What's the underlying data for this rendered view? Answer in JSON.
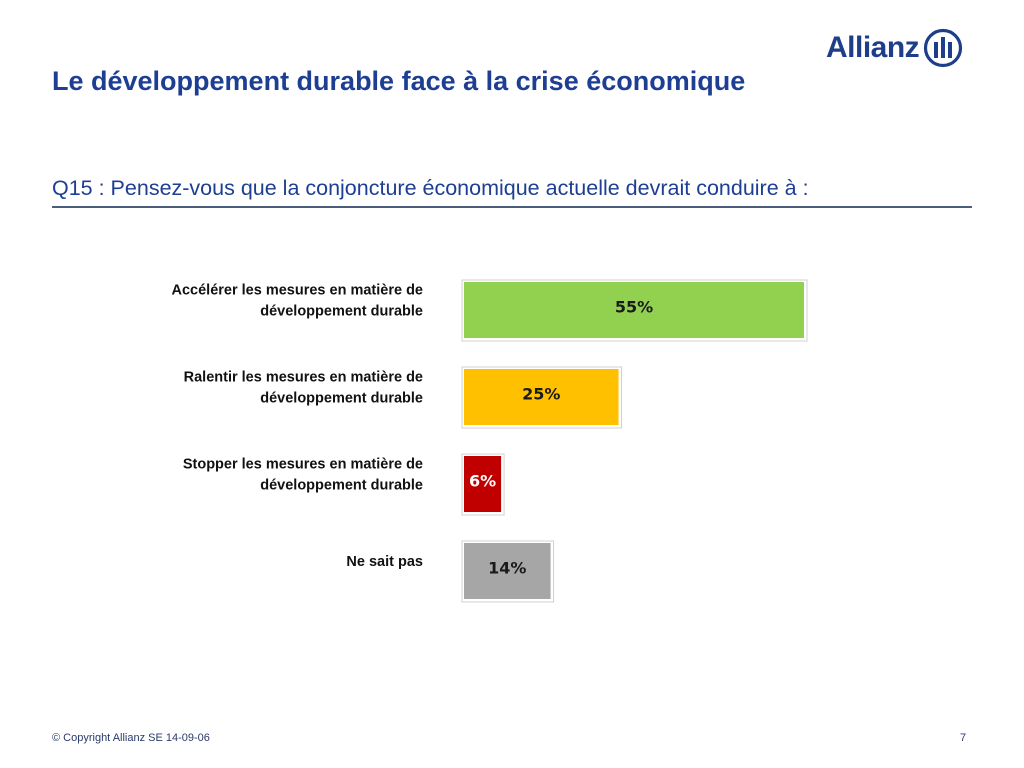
{
  "brand": {
    "name": "Allianz"
  },
  "title": "Le développement durable face à la crise économique",
  "question": "Q15 : Pensez-vous que la conjoncture économique actuelle devrait conduire à :",
  "chart_data": {
    "type": "bar",
    "orientation": "horizontal",
    "categories": [
      [
        "Accélérer les mesures en matière de",
        "développement durable"
      ],
      [
        "Ralentir les mesures en matière de",
        "développement durable"
      ],
      [
        "Stopper  les mesures en matière de",
        "développement durable"
      ],
      [
        "Ne sait pas"
      ]
    ],
    "values": [
      55,
      25,
      6,
      14
    ],
    "labels": [
      "55%",
      "25%",
      "6%",
      "14%"
    ],
    "colors": [
      "#92d050",
      "#ffc000",
      "#c00000",
      "#a6a6a6"
    ],
    "label_colors": [
      "#1a1a1a",
      "#1a1a1a",
      "#ffffff",
      "#1a1a1a"
    ],
    "xlim": [
      0,
      55
    ],
    "grid": false
  },
  "footer": {
    "copyright": "© Copyright Allianz SE 14-09-06",
    "page": "7"
  }
}
